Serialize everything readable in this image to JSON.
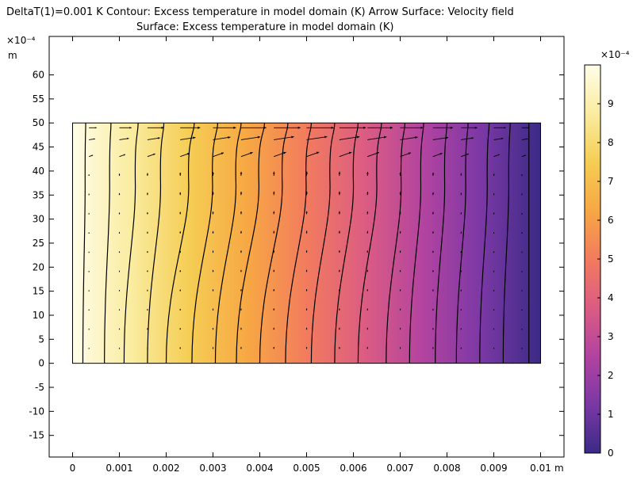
{
  "header": {
    "line1": "DeltaT(1)=0.001 K  Contour: Excess temperature in model domain (K)  Arrow Surface: Velocity field",
    "line2": "Surface: Excess temperature in model domain (K)"
  },
  "chart_data": {
    "type": "heatmap",
    "title": "DeltaT(1)=0.001 K  Contour: Excess temperature in model domain (K)  Arrow Surface: Velocity field",
    "subtitle": "Surface: Excess temperature in model domain (K)",
    "x_axis": {
      "unit": "m",
      "range": [
        -0.0005,
        0.0105
      ],
      "ticks": [
        0,
        0.001,
        0.002,
        0.003,
        0.004,
        0.005,
        0.006,
        0.007,
        0.008,
        0.009,
        0.01
      ],
      "tick_labels": [
        "0",
        "0.001",
        "0.002",
        "0.003",
        "0.004",
        "0.005",
        "0.006",
        "0.007",
        "0.008",
        "0.009",
        "0.01"
      ]
    },
    "y_axis": {
      "unit": "m",
      "exponent_label": "×10⁻⁴",
      "range": [
        -19.5,
        68
      ],
      "ticks": [
        -15,
        -10,
        -5,
        0,
        5,
        10,
        15,
        20,
        25,
        30,
        35,
        40,
        45,
        50,
        55,
        60
      ],
      "tick_labels": [
        "-15",
        "-10",
        "-5",
        "0",
        "5",
        "10",
        "15",
        "20",
        "25",
        "30",
        "35",
        "40",
        "45",
        "50",
        "55",
        "60"
      ]
    },
    "domain": {
      "x": [
        0,
        0.01
      ],
      "y": [
        0,
        50
      ]
    },
    "colorbar": {
      "exponent_label": "×10⁻⁴",
      "range": [
        0,
        10
      ],
      "ticks": [
        0,
        1,
        2,
        3,
        4,
        5,
        6,
        7,
        8,
        9
      ],
      "tick_labels": [
        "0",
        "1",
        "2",
        "3",
        "4",
        "5",
        "6",
        "7",
        "8",
        "9"
      ],
      "colormap": [
        "#3b2a85",
        "#7a38a5",
        "#b243a0",
        "#db5c83",
        "#f27b5e",
        "#f7a744",
        "#f5cd54",
        "#faeca0",
        "#fffde8"
      ],
      "position": "right"
    },
    "contours": {
      "levels": [
        0.25,
        0.75,
        1.25,
        1.75,
        2.25,
        2.75,
        3.25,
        3.75,
        4.25,
        4.75,
        5.25,
        5.75,
        6.25,
        6.75,
        7.25,
        7.75,
        8.25,
        8.75,
        9.25,
        9.75
      ],
      "bottom_x": [
        0.00975,
        0.0092,
        0.0087,
        0.0082,
        0.00775,
        0.0072,
        0.0067,
        0.0061,
        0.0056,
        0.0051,
        0.00455,
        0.004,
        0.0035,
        0.00305,
        0.00255,
        0.002,
        0.0016,
        0.0011,
        0.00068,
        0.00022
      ],
      "top_x": [
        0.00975,
        0.00935,
        0.0089,
        0.00845,
        0.008,
        0.0075,
        0.0071,
        0.0066,
        0.0061,
        0.0056,
        0.0051,
        0.0046,
        0.0041,
        0.0036,
        0.0031,
        0.0026,
        0.00195,
        0.0014,
        0.00082,
        0.00028
      ]
    },
    "arrows": {
      "columns_x": [
        0.00035,
        0.001,
        0.0016,
        0.0023,
        0.003,
        0.0036,
        0.0043,
        0.005,
        0.0057,
        0.0063,
        0.007,
        0.0077,
        0.0083,
        0.009,
        0.0096
      ],
      "rows_y": [
        3,
        7,
        11,
        15,
        19,
        23,
        27,
        31,
        35,
        39,
        43,
        46.5,
        49
      ]
    },
    "grid": false,
    "legend": "none"
  }
}
